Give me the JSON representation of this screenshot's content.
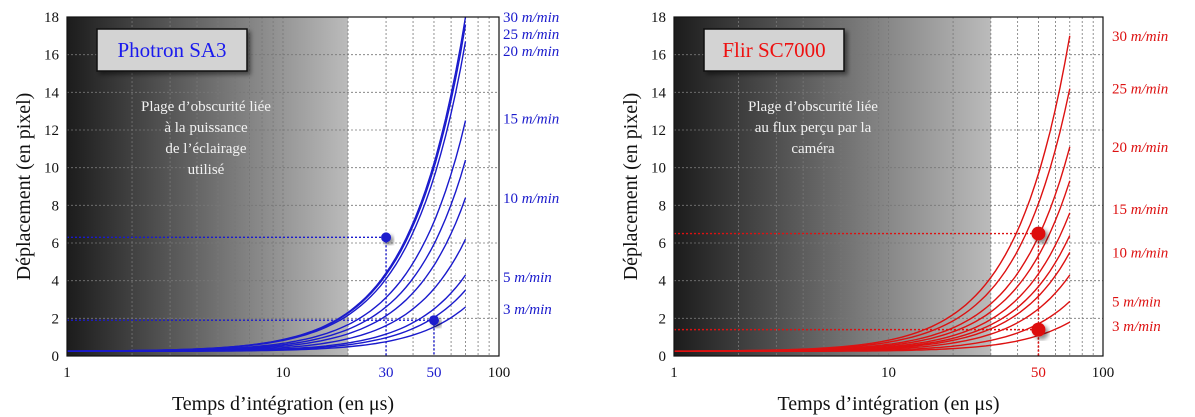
{
  "chart_data": [
    {
      "type": "line",
      "title": "Photron SA3",
      "xlabel": "Temps d’intégration (en μs)",
      "ylabel": "Déplacement (en pixel)",
      "xscale": "log",
      "xlim": [
        1,
        100
      ],
      "ylim": [
        0,
        18
      ],
      "grid": true,
      "x_ticks": [
        "1",
        "10",
        "100"
      ],
      "x_highlight_ticks": [
        "30",
        "50"
      ],
      "y_ticks": [
        "0",
        "2",
        "4",
        "6",
        "8",
        "10",
        "12",
        "14",
        "16",
        "18"
      ],
      "annotation": [
        "Plage d’obscurité liée",
        "à la puissance",
        "de l’éclairage",
        "utilisé"
      ],
      "dark_region_end_x": 20,
      "curve_x_end": 70,
      "curve_exponent": 1.7,
      "series": [
        {
          "name": "3 m/min",
          "y_at_end": 2.6
        },
        {
          "name": "",
          "y_at_end": 3.5
        },
        {
          "name": "5 m/min",
          "y_at_end": 4.3
        },
        {
          "name": "",
          "y_at_end": 6.2
        },
        {
          "name": "10 m/min",
          "y_at_end": 8.4
        },
        {
          "name": "",
          "y_at_end": 10.4
        },
        {
          "name": "15 m/min",
          "y_at_end": 12.5
        },
        {
          "name": "20 m/min",
          "y_at_end": 16.7
        },
        {
          "name": "25 m/min",
          "y_at_end": 17.6
        },
        {
          "name": "30 m/min",
          "y_at_end": 18.0
        }
      ],
      "series_labels": [
        {
          "speed": "30",
          "unit": "m/min",
          "y": 18.0
        },
        {
          "speed": "25",
          "unit": "m/min",
          "y": 17.1
        },
        {
          "speed": "20",
          "unit": "m/min",
          "y": 16.2
        },
        {
          "speed": "15",
          "unit": "m/min",
          "y": 12.6
        },
        {
          "speed": "10",
          "unit": "m/min",
          "y": 8.4
        },
        {
          "speed": "5",
          "unit": "m/min",
          "y": 4.2
        },
        {
          "speed": "3",
          "unit": "m/min",
          "y": 2.5
        }
      ],
      "markers": [
        {
          "x": 30,
          "y": 6.3
        },
        {
          "x": 50,
          "y": 1.9
        }
      ],
      "color": "#1a1acc",
      "title_color": "#1a1aee"
    },
    {
      "type": "line",
      "title": "Flir SC7000",
      "xlabel": "Temps d’intégration (en μs)",
      "ylabel": "Déplacement (en pixel)",
      "xscale": "log",
      "xlim": [
        1,
        100
      ],
      "ylim": [
        0,
        18
      ],
      "grid": true,
      "x_ticks": [
        "1",
        "10",
        "100"
      ],
      "x_highlight_ticks": [
        "50"
      ],
      "y_ticks": [
        "0",
        "2",
        "4",
        "6",
        "8",
        "10",
        "12",
        "14",
        "16",
        "18"
      ],
      "annotation": [
        "Plage d’obscurité liée",
        "au flux perçu par la",
        "caméra"
      ],
      "dark_region_end_x": 30,
      "curve_x_end": 70,
      "curve_exponent": 1.7,
      "series": [
        {
          "name": "3 m/min",
          "y_at_end": 1.8
        },
        {
          "name": "5 m/min",
          "y_at_end": 2.9
        },
        {
          "name": "",
          "y_at_end": 4.3
        },
        {
          "name": "10 m/min",
          "y_at_end": 5.5
        },
        {
          "name": "",
          "y_at_end": 6.4
        },
        {
          "name": "15 m/min",
          "y_at_end": 7.6
        },
        {
          "name": "",
          "y_at_end": 9.3
        },
        {
          "name": "20 m/min",
          "y_at_end": 11.1
        },
        {
          "name": "25 m/min",
          "y_at_end": 14.2
        },
        {
          "name": "30 m/min",
          "y_at_end": 17.0
        }
      ],
      "series_labels": [
        {
          "speed": "30",
          "unit": "m/min",
          "y": 17.0
        },
        {
          "speed": "25",
          "unit": "m/min",
          "y": 14.2
        },
        {
          "speed": "20",
          "unit": "m/min",
          "y": 11.1
        },
        {
          "speed": "15",
          "unit": "m/min",
          "y": 7.8
        },
        {
          "speed": "10",
          "unit": "m/min",
          "y": 5.5
        },
        {
          "speed": "5",
          "unit": "m/min",
          "y": 2.9
        },
        {
          "speed": "3",
          "unit": "m/min",
          "y": 1.6
        }
      ],
      "markers": [
        {
          "x": 50,
          "y": 6.5
        },
        {
          "x": 50,
          "y": 1.4
        }
      ],
      "color": "#dd1111",
      "title_color": "#ee1111"
    }
  ]
}
